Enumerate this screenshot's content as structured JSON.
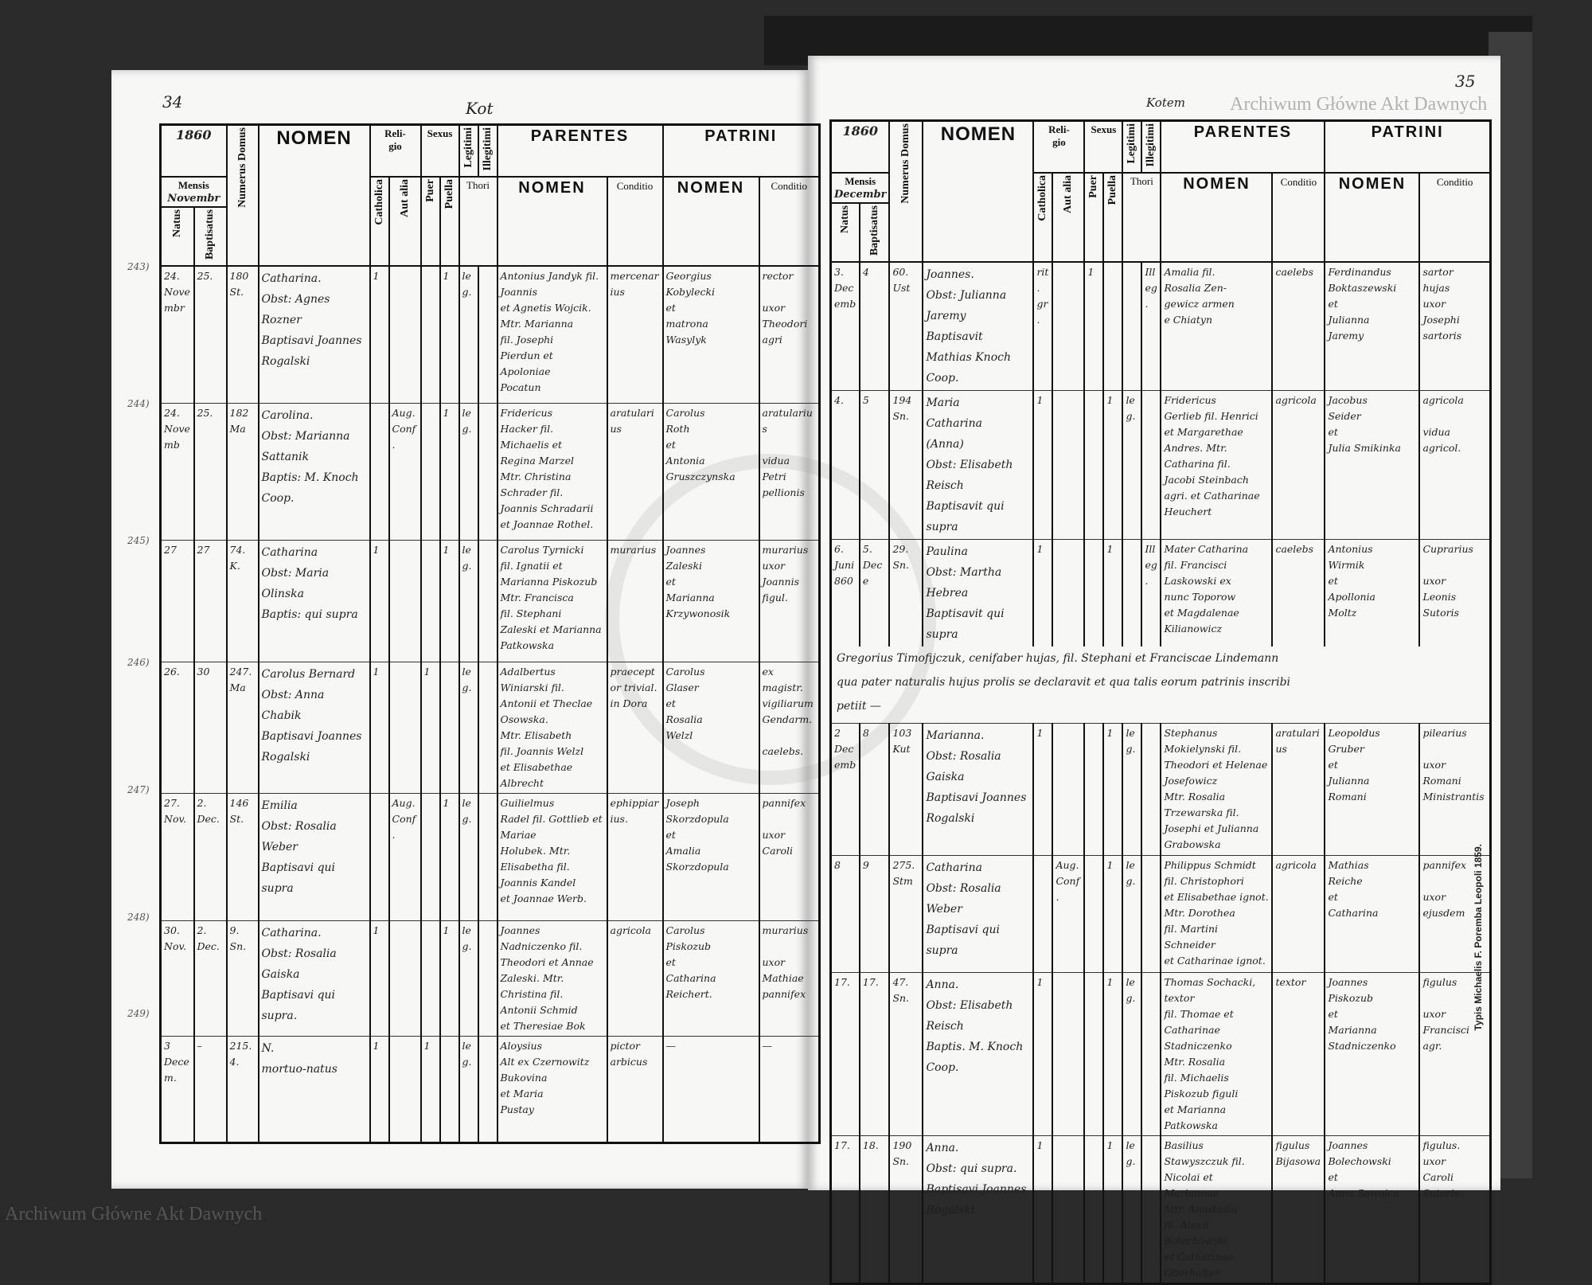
{
  "left_page": {
    "page_number": "34",
    "place_note": "Kot",
    "year": "1860",
    "month": "Novembr",
    "entry_numbers": [
      "243)",
      "244)",
      "245)",
      "246)",
      "247)",
      "248)",
      "249)"
    ],
    "rows": [
      {
        "natus": "24.\nNovembr",
        "baptisatus": "25.",
        "domus": "180\nSt.",
        "nomen": "Catharina.\nObst: Agnes Rozner\nBaptisavi Joannes Rogalski",
        "catholica": "1",
        "aut_alia": "",
        "puer": "",
        "puella": "1",
        "legitimi": "leg.",
        "illegitimi": "",
        "parentes": "Antonius Jandyk fil. Joannis\net Agnetis Wojcik.\nMtr. Marianna\nfil. Josephi\nPierdun et Apoloniae\nPocatun",
        "parentes_conditio": "mercenarius",
        "patrini": "Georgius\nKobylecki\net\nmatrona\nWasylyk",
        "patrini_conditio": "rector\n\nuxor Theodori agri"
      },
      {
        "natus": "24.\nNovemb",
        "baptisatus": "25.",
        "domus": "182\nMa",
        "nomen": "Carolina.\nObst: Marianna Sattanik\nBaptis: M. Knoch Coop.",
        "catholica": "",
        "aut_alia": "Aug.\nConf.",
        "puer": "",
        "puella": "1",
        "legitimi": "leg.",
        "illegitimi": "",
        "parentes": "Fridericus\nHacker fil.\nMichaelis et\nRegina Marzel\nMtr. Christina\nSchrader fil.\nJoannis Schradarii\net Joannae Rothel.",
        "parentes_conditio": "aratularius",
        "patrini": "Carolus\nRoth\net\nAntonia\nGruszczynska",
        "patrini_conditio": "aratularius\n\nvidua\nPetri pellionis"
      },
      {
        "natus": "27",
        "baptisatus": "27",
        "domus": "74.\nK.",
        "nomen": "Catharina\nObst: Maria Olinska\nBaptis: qui supra",
        "catholica": "1",
        "aut_alia": "",
        "puer": "",
        "puella": "1",
        "legitimi": "leg.",
        "illegitimi": "",
        "parentes": "Carolus Tyrnicki\nfil. Ignatii et Marianna Piskozub\nMtr. Francisca\nfil. Stephani\nZaleski et Marianna Patkowska",
        "parentes_conditio": "murarius",
        "patrini": "Joannes\nZaleski\net\nMarianna\nKrzywonosik",
        "patrini_conditio": "murarius\nuxor\nJoannis\nfigul."
      },
      {
        "natus": "26.",
        "baptisatus": "30",
        "domus": "247.\nMa",
        "nomen": "Carolus Bernard\nObst: Anna Chabik\nBaptisavi Joannes Rogalski",
        "catholica": "1",
        "aut_alia": "",
        "puer": "1",
        "puella": "",
        "legitimi": "leg.",
        "illegitimi": "",
        "parentes": "Adalbertus\nWiniarski fil.\nAntonii et Theclae\nOsowska.\nMtr. Elisabeth\nfil. Joannis Welzl\net Elisabethae\nAlbrecht",
        "parentes_conditio": "praeceptor trivial. in Dora",
        "patrini": "Carolus\nGlaser\net\nRosalia\nWelzl",
        "patrini_conditio": "ex magistr.\nvigiliarum\nGendarm.\n\ncaelebs."
      },
      {
        "natus": "27.\nNov.",
        "baptisatus": "2.\nDec.",
        "domus": "146\nSt.",
        "nomen": "Emilia\nObst: Rosalia Weber\nBaptisavi qui supra",
        "catholica": "",
        "aut_alia": "Aug.\nConf.",
        "puer": "",
        "puella": "1",
        "legitimi": "leg.",
        "illegitimi": "",
        "parentes": "Guilielmus\nRadel fil. Gottlieb et Mariae\nHolubek. Mtr.\nElisabetha fil.\nJoannis Kandel\net Joannae Werb.",
        "parentes_conditio": "ephippiarius.",
        "patrini": "Joseph\nSkorzdopula\net\nAmalia\nSkorzdopula",
        "patrini_conditio": "pannifex\n\nuxor\nCaroli"
      },
      {
        "natus": "30.\nNov.",
        "baptisatus": "2.\nDec.",
        "domus": "9.\nSn.",
        "nomen": "Catharina.\nObst: Rosalia Gaiska\nBaptisavi qui supra.",
        "catholica": "1",
        "aut_alia": "",
        "puer": "",
        "puella": "1",
        "legitimi": "leg.",
        "illegitimi": "",
        "parentes": "Joannes Nadniczenko fil.\nTheodori et Annae\nZaleski. Mtr.\nChristina fil.\nAntonii Schmid\net Theresiae Bok",
        "parentes_conditio": "agricola",
        "patrini": "Carolus\nPiskozub\net\nCatharina\nReichert.",
        "patrini_conditio": "murarius\n\nuxor\nMathiae\npannifex"
      },
      {
        "natus": "3\nDecem.",
        "baptisatus": "–",
        "domus": "215.\n4.",
        "nomen": "N.\nmortuo-natus",
        "catholica": "1",
        "aut_alia": "",
        "puer": "1",
        "puella": "",
        "legitimi": "leg.",
        "illegitimi": "",
        "parentes": "Aloysius\nAlt ex Czernowitz\nBukovina\net Maria\nPustay",
        "parentes_conditio": "pictor\narbicus",
        "patrini": "—",
        "patrini_conditio": "—"
      }
    ]
  },
  "right_page": {
    "page_number": "35",
    "place_note": "Kotem",
    "year": "1860",
    "month": "Decembr",
    "rows": [
      {
        "natus": "3.\nDecemb",
        "baptisatus": "4",
        "domus": "60.\nUst",
        "nomen": "Joannes.\nObst: Julianna Jaremy\nBaptisavit Mathias Knoch Coop.",
        "catholica": "rit.\ngr.",
        "aut_alia": "",
        "puer": "1",
        "puella": "",
        "legitimi": "",
        "illegitimi": "Illeg.",
        "parentes": "Amalia fil.\nRosalia Zen-\ngewicz armen\ne Chiatyn",
        "parentes_conditio": "caelebs",
        "patrini": "Ferdinandus\nBoktaszewski\net\nJulianna\nJaremy",
        "patrini_conditio": "sartor\nhujas\nuxor\nJosephi\nsartoris"
      },
      {
        "natus": "4.",
        "baptisatus": "5",
        "domus": "194\nSn.",
        "nomen": "Maria\nCatharina\n(Anna)\nObst: Elisabeth Reisch\nBaptisavit qui supra",
        "catholica": "1",
        "aut_alia": "",
        "puer": "",
        "puella": "1",
        "legitimi": "leg.",
        "illegitimi": "",
        "parentes": "Fridericus\nGerlieb fil. Henrici et Margarethae\nAndres. Mtr.\nCatharina fil.\nJacobi Steinbach\nagri. et Catharinae\nHeuchert",
        "parentes_conditio": "agricola",
        "patrini": "Jacobus\nSeider\net\nJulia Smikinka",
        "patrini_conditio": "agricola\n\nvidua\nagricol."
      },
      {
        "natus": "6.\nJuni\n860",
        "baptisatus": "5.\nDece",
        "domus": "29.\nSn.",
        "nomen": "Paulina\nObst: Martha Hebrea\nBaptisavit qui supra",
        "catholica": "1",
        "aut_alia": "",
        "puer": "",
        "puella": "1",
        "legitimi": "",
        "illegitimi": "Illeg.",
        "parentes": "Mater Catharina\nfil. Francisci\nLaskowski ex\nnunc Toporow\net Magdalenae\nKilianowicz",
        "parentes_conditio": "caelebs",
        "patrini": "Antonius\nWirmik\net\nApollonia\nMoltz",
        "patrini_conditio": "Cuprarius\n\nuxor\nLeonis\nSutoris"
      },
      {
        "natus": "2\nDecemb",
        "baptisatus": "8",
        "domus": "103\nKut",
        "nomen": "Marianna.\nObst: Rosalia Gaiska\nBaptisavi Joannes Rogalski",
        "catholica": "1",
        "aut_alia": "",
        "puer": "",
        "puella": "1",
        "legitimi": "leg.",
        "illegitimi": "",
        "parentes": "Stephanus Mokielynski fil.\nTheodori et Helenae\nJosefowicz\nMtr. Rosalia\nTrzewarska fil.\nJosephi et Julianna\nGrabowska",
        "parentes_conditio": "aratularius",
        "patrini": "Leopoldus\nGruber\net\nJulianna\nRomani",
        "patrini_conditio": "pilearius\n\nuxor\nRomani\nMinistrantis"
      },
      {
        "natus": "8",
        "baptisatus": "9",
        "domus": "275.\nStm",
        "nomen": "Catharina\nObst: Rosalia Weber\nBaptisavi qui supra",
        "catholica": "",
        "aut_alia": "Aug.\nConf.",
        "puer": "",
        "puella": "1",
        "legitimi": "leg.",
        "illegitimi": "",
        "parentes": "Philippus Schmidt\nfil. Christophori\net Elisabethae ignot.\nMtr. Dorothea\nfil. Martini Schneider\net Catharinae ignot.",
        "parentes_conditio": "agricola",
        "patrini": "Mathias\nReiche\net\nCatharina",
        "patrini_conditio": "pannifex\n\nuxor ejusdem"
      },
      {
        "natus": "17.",
        "baptisatus": "17.",
        "domus": "47.\nSn.",
        "nomen": "Anna.\nObst: Elisabeth Reisch\nBaptis. M. Knoch Coop.",
        "catholica": "1",
        "aut_alia": "",
        "puer": "",
        "puella": "1",
        "legitimi": "leg.",
        "illegitimi": "",
        "parentes": "Thomas Sochacki, textor\nfil. Thomae et\nCatharinae\nStadniczenko\nMtr. Rosalia\nfil. Michaelis\nPiskozub figuli\net Marianna\nPatkowska",
        "parentes_conditio": "textor",
        "patrini": "Joannes\nPiskozub\net\nMarianna\nStadniczenko",
        "patrini_conditio": "figulus\n\nuxor\nFrancisci\nagr."
      },
      {
        "natus": "17.",
        "baptisatus": "18.",
        "domus": "190\nSn.",
        "nomen": "Anna.\nObst: qui supra.\nBaptisavi Joannes Rogalski",
        "catholica": "1",
        "aut_alia": "",
        "puer": "",
        "puella": "1",
        "legitimi": "leg.",
        "illegitimi": "",
        "parentes": "Basilius Stawyszczuk fil. Nicolai et Mariannae\nMtr. Anastasia\nfil. Alexii Bolechowski\net Catharinae Oberhalter",
        "parentes_conditio": "figulus\nBijasowa",
        "patrini": "Joannes\nBolechowski\net\nAnna Sawojca",
        "patrini_conditio": "figulus.\nuxor\nCaroli\nSutoris"
      }
    ],
    "paulina_note": "Gregorius Timofijczuk, cenifaber hujas, fil. Stephani et Franciscae Lindemann\nqua pater naturalis hujus prolis se declaravit et qua talis eorum patrinis inscribi\npetiit —"
  },
  "headers": {
    "mensis": "Mensis",
    "natus": "Natus",
    "baptisatus": "Baptisatus",
    "numerus_domus": "Numerus Domus",
    "nomen": "NOMEN",
    "religio": "Reli-\ngio",
    "catholica": "Catholica",
    "aut_alia": "Aut alia",
    "sexus": "Sexus",
    "puer": "Puer",
    "puella": "Puella",
    "legitimi": "Legitimi",
    "illegitimi": "Illegitimi",
    "thori": "Thori",
    "parentes": "PARENTES",
    "patrini": "PATRINI",
    "sub_nomen": "NOMEN",
    "conditio": "Conditio"
  },
  "printer_mark": "Typis Michaelis F. Poremba Leopoli 1859.",
  "watermarks": {
    "archive_name": "Archiwum Główne Akt Dawnych"
  }
}
